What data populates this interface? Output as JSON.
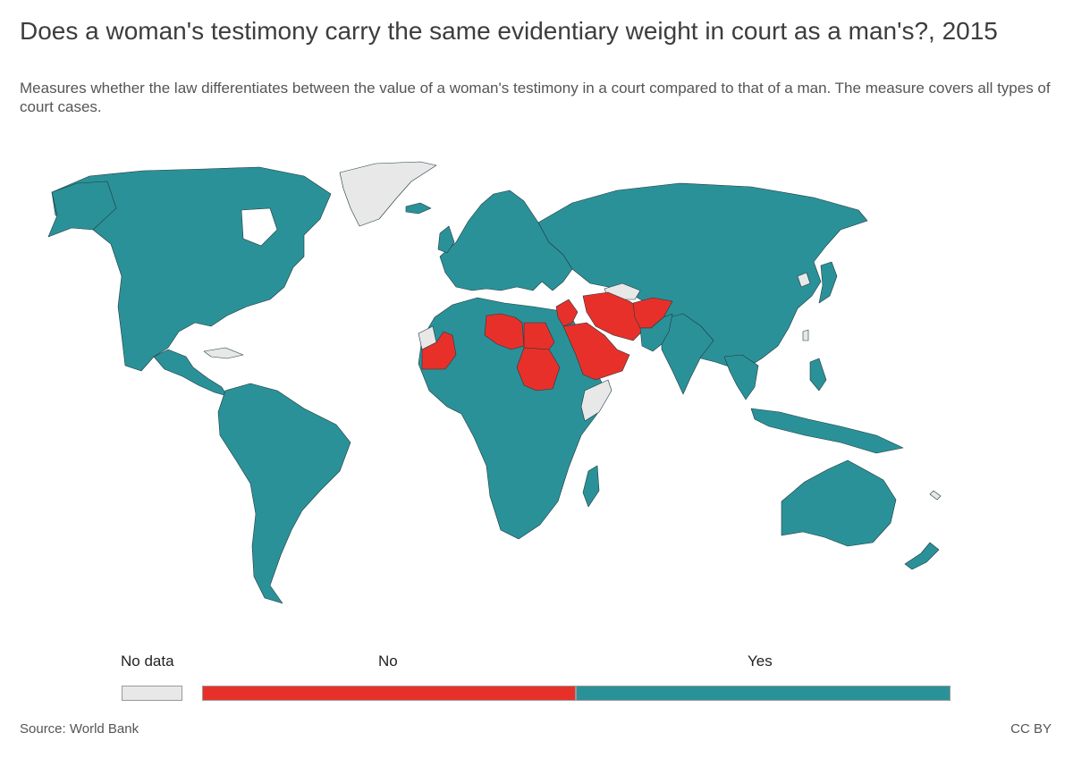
{
  "header": {
    "title": "Does a woman's testimony carry the same evidentiary weight in court as a man's?, 2015",
    "subtitle": "Measures whether the law differentiates between the value of a woman's testimony in a court compared to that of a man. The measure covers all types of court cases."
  },
  "colors": {
    "yes": "#2b9199",
    "no": "#e8302a",
    "no_data": "#e8e8e8",
    "border": "#1e3a3d",
    "ocean": "#ffffff"
  },
  "legend": {
    "no_data_label": "No data",
    "no_label": "No",
    "yes_label": "Yes"
  },
  "map_data": {
    "variable": "Same evidentiary weight of testimony",
    "year": "2015",
    "categories": [
      "No data",
      "No",
      "Yes"
    ],
    "countries_no": [
      "Mauritania",
      "Libya",
      "Egypt",
      "Sudan",
      "Saudi Arabia",
      "Yemen",
      "Oman",
      "United Arab Emirates",
      "Qatar",
      "Kuwait",
      "Bahrain",
      "Jordan",
      "Syria",
      "Iran",
      "Afghanistan",
      "West Bank and Gaza"
    ],
    "countries_no_data": [
      "Greenland",
      "Western Sahara",
      "Somalia",
      "Turkmenistan",
      "North Korea",
      "Cuba",
      "Taiwan",
      "New Caledonia"
    ],
    "default": "Yes"
  },
  "footer": {
    "source": "Source: World Bank",
    "license": "CC BY"
  }
}
